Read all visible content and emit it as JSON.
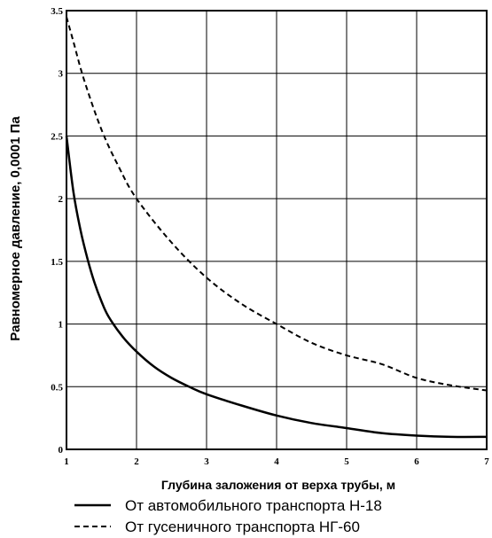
{
  "chart_data": {
    "type": "line",
    "title": "",
    "xlabel": "Глубина заложения от верха трубы, м",
    "ylabel": "Равномерное давление, 0,0001 Па",
    "xlim": [
      1,
      7
    ],
    "ylim": [
      0,
      3.5
    ],
    "x_ticks": [
      "1",
      "2",
      "3",
      "4",
      "5",
      "6",
      "7"
    ],
    "y_ticks": [
      "0",
      "0.5",
      "1",
      "1.5",
      "2",
      "2.5",
      "3",
      "3.5"
    ],
    "grid": true,
    "legend_position": "bottom",
    "series": [
      {
        "name": "От автомобильного транспорта Н-18",
        "style": "solid",
        "color": "#000000",
        "x": [
          1,
          1.1,
          1.2,
          1.3,
          1.4,
          1.5,
          1.6,
          1.8,
          2,
          2.25,
          2.5,
          2.75,
          3,
          3.5,
          4,
          4.5,
          5,
          5.5,
          6,
          6.5,
          7
        ],
        "y": [
          2.5,
          2.05,
          1.75,
          1.52,
          1.33,
          1.18,
          1.06,
          0.9,
          0.78,
          0.66,
          0.57,
          0.5,
          0.44,
          0.35,
          0.27,
          0.21,
          0.17,
          0.13,
          0.11,
          0.1,
          0.1
        ]
      },
      {
        "name": "От гусеничного транспорта НГ-60",
        "style": "dashed",
        "color": "#000000",
        "x": [
          1,
          1.1,
          1.25,
          1.5,
          1.75,
          2,
          2.5,
          3,
          3.5,
          4,
          4.5,
          5,
          5.5,
          6,
          6.5,
          7
        ],
        "y": [
          3.45,
          3.25,
          2.95,
          2.55,
          2.25,
          2.0,
          1.65,
          1.37,
          1.16,
          1.0,
          0.85,
          0.75,
          0.68,
          0.57,
          0.51,
          0.47
        ]
      }
    ]
  }
}
